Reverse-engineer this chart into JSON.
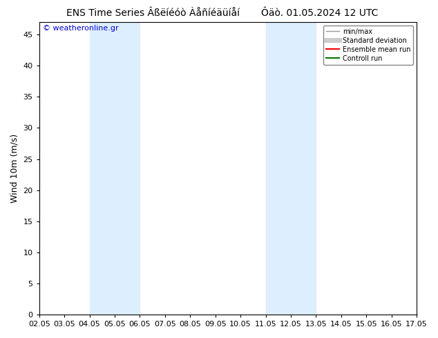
{
  "title_left": "ENS Time Series Âßëíéóò Àåñíéäüíåí",
  "title_right": "Ôäò. 01.05.2024 12 UTC",
  "ylabel": "Wind 10m (m/s)",
  "watermark": "© weatheronline.gr",
  "background_color": "#ffffff",
  "plot_bg_color": "#ffffff",
  "shaded_regions": [
    {
      "xstart": 4.05,
      "xend": 6.05,
      "color": "#ddeeff"
    },
    {
      "xstart": 11.05,
      "xend": 13.05,
      "color": "#ddeeff"
    }
  ],
  "xlim": [
    2.05,
    17.05
  ],
  "ylim": [
    0,
    47
  ],
  "yticks": [
    0,
    5,
    10,
    15,
    20,
    25,
    30,
    35,
    40,
    45
  ],
  "xtick_labels": [
    "02.05",
    "03.05",
    "04.05",
    "05.05",
    "06.05",
    "07.05",
    "08.05",
    "09.05",
    "10.05",
    "11.05",
    "12.05",
    "13.05",
    "14.05",
    "15.05",
    "16.05",
    "17.05"
  ],
  "xtick_positions": [
    2.05,
    3.05,
    4.05,
    5.05,
    6.05,
    7.05,
    8.05,
    9.05,
    10.05,
    11.05,
    12.05,
    13.05,
    14.05,
    15.05,
    16.05,
    17.05
  ],
  "legend_entries": [
    {
      "label": "min/max",
      "color": "#999999",
      "lw": 1.0,
      "style": "solid"
    },
    {
      "label": "Standard deviation",
      "color": "#cccccc",
      "lw": 5,
      "style": "solid"
    },
    {
      "label": "Ensemble mean run",
      "color": "#ff0000",
      "lw": 1.5,
      "style": "solid"
    },
    {
      "label": "Controll run",
      "color": "#007700",
      "lw": 1.5,
      "style": "solid"
    }
  ],
  "title_fontsize": 10,
  "axis_label_fontsize": 9,
  "tick_fontsize": 8,
  "watermark_color": "#0000cc",
  "legend_fontsize": 7,
  "spine_color": "#000000",
  "tick_color": "#000000"
}
